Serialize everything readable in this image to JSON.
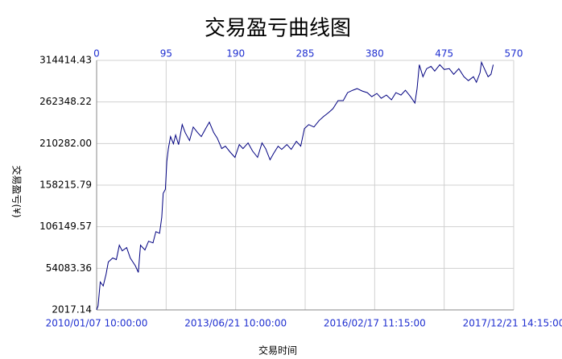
{
  "chart_data": {
    "type": "line",
    "title": "交易盈亏曲线图",
    "x_label": "交易时间",
    "y_label": "交易盈亏(¥)",
    "xlim": [
      0,
      570
    ],
    "xticks": [
      0,
      95,
      190,
      285,
      380,
      475,
      570
    ],
    "x_date_ticks": [
      {
        "value": 0,
        "label": "2010/01/07 10:00:00"
      },
      {
        "value": 190,
        "label": "2013/06/21 10:00:00"
      },
      {
        "value": 380,
        "label": "2016/02/17 11:15:00"
      },
      {
        "value": 570,
        "label": "2017/12/21 14:15:00"
      }
    ],
    "ylim": [
      2017.14,
      314414.43
    ],
    "yticks": [
      2017.14,
      54083.36,
      106149.57,
      158215.79,
      {
        "value": 210282,
        "label": "210282.00"
      },
      262348.22,
      314414.43
    ],
    "grid": true,
    "series": [
      {
        "color": "#000080",
        "x": [
          0,
          2,
          5,
          9,
          13,
          16,
          22,
          27,
          31,
          35,
          41,
          46,
          53,
          57,
          60,
          66,
          71,
          77,
          81,
          86,
          89,
          91,
          94,
          96,
          98,
          101,
          105,
          108,
          112,
          117,
          121,
          127,
          132,
          138,
          143,
          149,
          154,
          160,
          165,
          171,
          176,
          183,
          189,
          195,
          200,
          207,
          213,
          220,
          226,
          231,
          237,
          242,
          248,
          253,
          260,
          266,
          273,
          279,
          284,
          290,
          297,
          304,
          310,
          317,
          323,
          330,
          337,
          343,
          350,
          356,
          363,
          370,
          376,
          383,
          389,
          396,
          403,
          409,
          416,
          422,
          429,
          435,
          438,
          441,
          446,
          451,
          457,
          462,
          469,
          475,
          482,
          488,
          495,
          502,
          508,
          515,
          519,
          524,
          526,
          530,
          535,
          539,
          542
        ],
        "values": [
          2017,
          7000,
          37000,
          32000,
          47000,
          62000,
          67000,
          65000,
          83000,
          76000,
          80000,
          67000,
          57000,
          49000,
          83000,
          77000,
          88000,
          86000,
          100000,
          98000,
          118000,
          148000,
          153000,
          188000,
          204000,
          219000,
          210000,
          221000,
          209000,
          234000,
          224000,
          214000,
          231000,
          224000,
          219000,
          229000,
          237000,
          224000,
          217000,
          204000,
          207000,
          199000,
          193000,
          209000,
          204000,
          211000,
          201000,
          193000,
          211000,
          204000,
          190000,
          198000,
          207000,
          203000,
          209000,
          203000,
          213000,
          207000,
          229000,
          234000,
          231000,
          239000,
          244000,
          249000,
          254000,
          264000,
          264000,
          274000,
          277000,
          279000,
          276000,
          274000,
          269000,
          273000,
          267000,
          271000,
          265000,
          274000,
          271000,
          277000,
          269000,
          261000,
          279000,
          309000,
          294000,
          304000,
          307000,
          301000,
          309000,
          303000,
          304000,
          297000,
          304000,
          294000,
          289000,
          294000,
          287000,
          299000,
          312000,
          304000,
          294000,
          297000,
          309000
        ]
      }
    ]
  }
}
